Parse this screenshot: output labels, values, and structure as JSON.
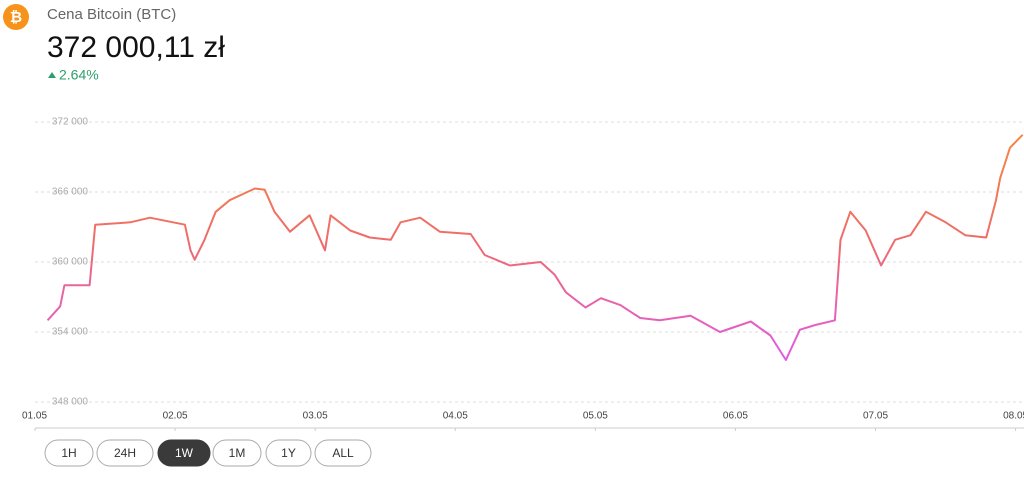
{
  "header": {
    "icon_symbol": "₿",
    "title": "Cena Bitcoin (BTC)",
    "price": "372 000,11 zł",
    "change": "2.64%"
  },
  "chart_data": {
    "type": "line",
    "x": [
      0.09,
      0.18,
      0.21,
      0.39,
      0.43,
      0.68,
      0.82,
      1.07,
      1.11,
      1.14,
      1.21,
      1.29,
      1.39,
      1.57,
      1.64,
      1.71,
      1.82,
      1.96,
      2.07,
      2.11,
      2.25,
      2.39,
      2.54,
      2.61,
      2.75,
      2.89,
      3.11,
      3.21,
      3.39,
      3.61,
      3.71,
      3.79,
      3.93,
      4.04,
      4.18,
      4.32,
      4.46,
      4.68,
      4.89,
      5.11,
      5.25,
      5.36,
      5.46,
      5.57,
      5.71,
      5.75,
      5.82,
      5.93,
      6.04,
      6.14,
      6.25,
      6.36,
      6.5,
      6.64,
      6.79,
      6.86,
      6.89,
      6.96,
      7.05
    ],
    "series": [
      {
        "values": [
          355000,
          356200,
          358000,
          358000,
          363200,
          363400,
          363800,
          363200,
          361000,
          360200,
          361900,
          364300,
          365300,
          366300,
          366200,
          364300,
          362600,
          364000,
          361000,
          364000,
          362700,
          362100,
          361900,
          363400,
          363800,
          362600,
          362400,
          360600,
          359700,
          360000,
          358900,
          357400,
          356100,
          356900,
          356300,
          355200,
          355000,
          355400,
          354000,
          354900,
          353700,
          351600,
          354200,
          354600,
          355000,
          361900,
          364300,
          362700,
          359700,
          361900,
          362300,
          364300,
          363400,
          362300,
          362100,
          365300,
          367200,
          369800,
          370900
        ]
      }
    ],
    "line_colors": [
      "#f58a3a",
      "#ef6b6b",
      "#e05ae6"
    ],
    "xlim": [
      0,
      7.06
    ],
    "xticks": [
      {
        "value": 0,
        "label": "01.05"
      },
      {
        "value": 1,
        "label": "02.05"
      },
      {
        "value": 2,
        "label": "03.05"
      },
      {
        "value": 3,
        "label": "04.05"
      },
      {
        "value": 4,
        "label": "05.05"
      },
      {
        "value": 5,
        "label": "06.05"
      },
      {
        "value": 6,
        "label": "07.05"
      },
      {
        "value": 7,
        "label": "08.05"
      }
    ],
    "ylim": [
      348000,
      372000
    ],
    "yticks": [
      {
        "value": 348000,
        "label": "348 000"
      },
      {
        "value": 354000,
        "label": "354 000"
      },
      {
        "value": 360000,
        "label": "360 000"
      },
      {
        "value": 366000,
        "label": "366 000"
      },
      {
        "value": 372000,
        "label": "372 000"
      }
    ],
    "grid": true
  },
  "buttons": [
    "1H",
    "24H",
    "1W",
    "1M",
    "1Y",
    "ALL"
  ],
  "active_button": 2
}
